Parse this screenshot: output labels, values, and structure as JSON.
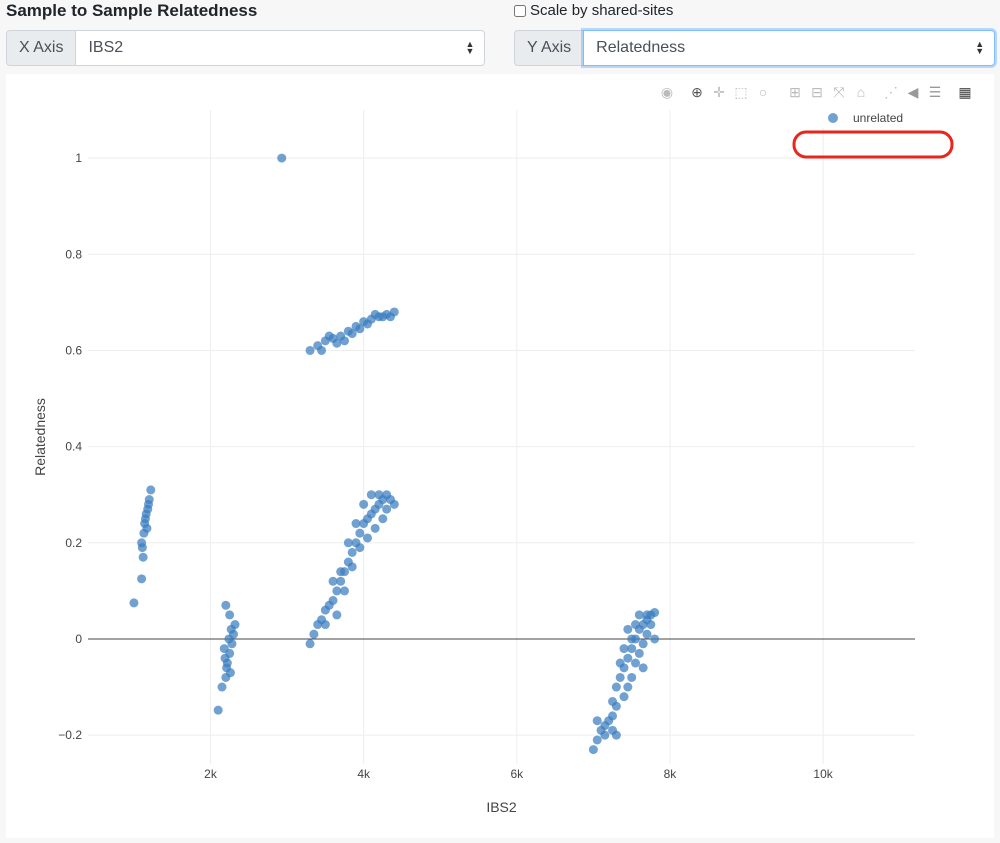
{
  "title": "Sample to Sample Relatedness",
  "scale_checkbox": {
    "label": "Scale by shared-sites",
    "checked": false
  },
  "x_axis_select": {
    "label": "X Axis",
    "value": "IBS2"
  },
  "y_axis_select": {
    "label": "Y Axis",
    "value": "Relatedness"
  },
  "modebar": [
    "camera-icon",
    "zoom-icon",
    "pan-icon",
    "box-select-icon",
    "lasso-icon",
    "zoom-in-icon",
    "zoom-out-icon",
    "autoscale-icon",
    "home-icon",
    "spike-lines-icon",
    "hover-closest-icon",
    "hover-compare-icon",
    "plotly-logo-icon"
  ],
  "colors": {
    "marker": "#3a7dbf",
    "highlight": "#e8261b"
  },
  "chart_data": {
    "type": "scatter",
    "xlabel": "IBS2",
    "ylabel": "Relatedness",
    "xlim": [
      400,
      11200
    ],
    "ylim": [
      -0.26,
      1.1
    ],
    "xticks": [
      {
        "v": 2000,
        "label": "2k"
      },
      {
        "v": 4000,
        "label": "4k"
      },
      {
        "v": 6000,
        "label": "6k"
      },
      {
        "v": 8000,
        "label": "8k"
      },
      {
        "v": 10000,
        "label": "10k"
      }
    ],
    "yticks": [
      {
        "v": -0.2,
        "label": "−0.2"
      },
      {
        "v": 0,
        "label": "0"
      },
      {
        "v": 0.2,
        "label": "0.2"
      },
      {
        "v": 0.4,
        "label": "0.4"
      },
      {
        "v": 0.6,
        "label": "0.6"
      },
      {
        "v": 0.8,
        "label": "0.8"
      },
      {
        "v": 1,
        "label": "1"
      }
    ],
    "grid": true,
    "legend": {
      "position": "top-right",
      "entries": [
        "unrelated"
      ]
    },
    "series": [
      {
        "name": "unrelated",
        "points": [
          [
            1000,
            0.075
          ],
          [
            1100,
            0.125
          ],
          [
            1120,
            0.17
          ],
          [
            1100,
            0.2
          ],
          [
            1130,
            0.22
          ],
          [
            1150,
            0.25
          ],
          [
            1180,
            0.27
          ],
          [
            1200,
            0.29
          ],
          [
            1220,
            0.31
          ],
          [
            1140,
            0.24
          ],
          [
            1160,
            0.26
          ],
          [
            1190,
            0.28
          ],
          [
            1110,
            0.19
          ],
          [
            1170,
            0.23
          ],
          [
            2100,
            -0.148
          ],
          [
            2150,
            -0.1
          ],
          [
            2200,
            -0.08
          ],
          [
            2220,
            -0.05
          ],
          [
            2250,
            -0.03
          ],
          [
            2280,
            -0.01
          ],
          [
            2300,
            0.01
          ],
          [
            2320,
            0.03
          ],
          [
            2200,
            0.07
          ],
          [
            2250,
            0.05
          ],
          [
            2180,
            -0.02
          ],
          [
            2240,
            0.0
          ],
          [
            2210,
            -0.06
          ],
          [
            2270,
            0.02
          ],
          [
            2190,
            -0.04
          ],
          [
            2260,
            -0.07
          ],
          [
            2930,
            1.0
          ],
          [
            3300,
            0.6
          ],
          [
            3400,
            0.61
          ],
          [
            3500,
            0.62
          ],
          [
            3600,
            0.625
          ],
          [
            3700,
            0.63
          ],
          [
            3800,
            0.64
          ],
          [
            3900,
            0.65
          ],
          [
            4000,
            0.66
          ],
          [
            4100,
            0.665
          ],
          [
            4200,
            0.67
          ],
          [
            4300,
            0.675
          ],
          [
            4400,
            0.68
          ],
          [
            3450,
            0.6
          ],
          [
            3650,
            0.615
          ],
          [
            3850,
            0.635
          ],
          [
            4050,
            0.655
          ],
          [
            4250,
            0.67
          ],
          [
            3550,
            0.63
          ],
          [
            3750,
            0.62
          ],
          [
            3950,
            0.645
          ],
          [
            4150,
            0.675
          ],
          [
            4350,
            0.67
          ],
          [
            3300,
            -0.01
          ],
          [
            3350,
            0.01
          ],
          [
            3400,
            0.03
          ],
          [
            3450,
            0.04
          ],
          [
            3500,
            0.06
          ],
          [
            3550,
            0.07
          ],
          [
            3600,
            0.08
          ],
          [
            3650,
            0.1
          ],
          [
            3700,
            0.12
          ],
          [
            3750,
            0.14
          ],
          [
            3800,
            0.16
          ],
          [
            3850,
            0.18
          ],
          [
            3900,
            0.2
          ],
          [
            3950,
            0.22
          ],
          [
            4000,
            0.24
          ],
          [
            4050,
            0.25
          ],
          [
            4100,
            0.26
          ],
          [
            4150,
            0.27
          ],
          [
            4200,
            0.28
          ],
          [
            4250,
            0.29
          ],
          [
            4300,
            0.3
          ],
          [
            4350,
            0.29
          ],
          [
            3600,
            0.12
          ],
          [
            3700,
            0.14
          ],
          [
            3800,
            0.2
          ],
          [
            3900,
            0.24
          ],
          [
            4000,
            0.28
          ],
          [
            4100,
            0.3
          ],
          [
            4200,
            0.3
          ],
          [
            3750,
            0.1
          ],
          [
            3850,
            0.15
          ],
          [
            3950,
            0.19
          ],
          [
            4050,
            0.21
          ],
          [
            4150,
            0.23
          ],
          [
            4250,
            0.25
          ],
          [
            3650,
            0.05
          ],
          [
            3500,
            0.03
          ],
          [
            4300,
            0.27
          ],
          [
            4400,
            0.28
          ],
          [
            7000,
            -0.23
          ],
          [
            7050,
            -0.21
          ],
          [
            7100,
            -0.19
          ],
          [
            7150,
            -0.18
          ],
          [
            7200,
            -0.17
          ],
          [
            7250,
            -0.16
          ],
          [
            7300,
            -0.2
          ],
          [
            7050,
            -0.17
          ],
          [
            7150,
            -0.2
          ],
          [
            7250,
            -0.19
          ],
          [
            7300,
            -0.1
          ],
          [
            7350,
            -0.08
          ],
          [
            7400,
            -0.06
          ],
          [
            7450,
            -0.04
          ],
          [
            7500,
            -0.02
          ],
          [
            7550,
            0.0
          ],
          [
            7600,
            0.02
          ],
          [
            7650,
            0.03
          ],
          [
            7700,
            0.04
          ],
          [
            7750,
            0.05
          ],
          [
            7800,
            0.055
          ],
          [
            7400,
            -0.12
          ],
          [
            7450,
            -0.1
          ],
          [
            7500,
            -0.08
          ],
          [
            7550,
            -0.05
          ],
          [
            7600,
            -0.03
          ],
          [
            7650,
            -0.01
          ],
          [
            7700,
            0.01
          ],
          [
            7750,
            0.03
          ],
          [
            7500,
            0.0
          ],
          [
            7600,
            0.05
          ],
          [
            7700,
            0.05
          ],
          [
            7450,
            0.02
          ],
          [
            7550,
            0.03
          ],
          [
            7350,
            -0.05
          ],
          [
            7650,
            -0.06
          ],
          [
            7800,
            0.0
          ],
          [
            7400,
            -0.02
          ],
          [
            7300,
            -0.14
          ],
          [
            7250,
            -0.13
          ]
        ]
      }
    ]
  }
}
